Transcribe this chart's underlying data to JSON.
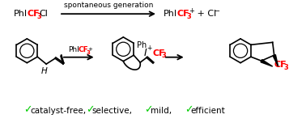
{
  "bg_color": "#ffffff",
  "black": "#000000",
  "red": "#ff0000",
  "green": "#00cc00",
  "figsize": [
    3.78,
    1.52
  ],
  "dpi": 100,
  "top_arrow_label": "spontaneous generation",
  "bottom_labels": [
    [
      "✓",
      "catalyst-free,"
    ],
    [
      "✓",
      "selective,"
    ],
    [
      "✓",
      "mild,"
    ],
    [
      "✓",
      "efficient"
    ]
  ]
}
